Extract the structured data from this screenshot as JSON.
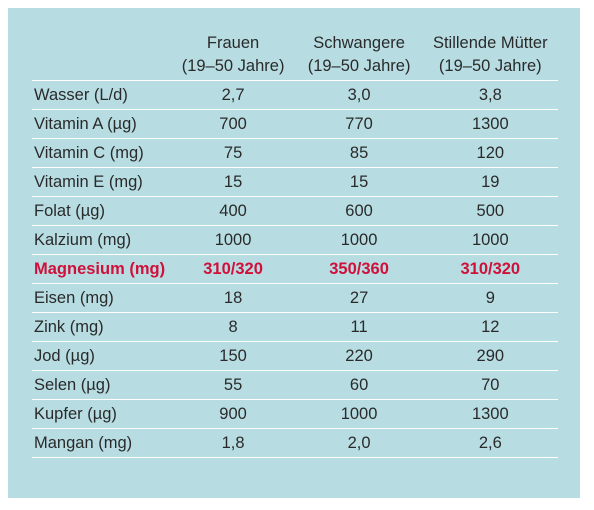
{
  "header": {
    "columns": [
      {
        "line1": "Frauen",
        "line2": "(19–50 Jahre)"
      },
      {
        "line1": "Schwangere",
        "line2": "(19–50 Jahre)"
      },
      {
        "line1": "Stillende Mütter",
        "line2": "(19–50 Jahre)"
      }
    ]
  },
  "rows": [
    {
      "label": "Wasser (L/d)",
      "values": [
        "2,7",
        "3,0",
        "3,8"
      ]
    },
    {
      "label": "Vitamin A (µg)",
      "values": [
        "700",
        "770",
        "1300"
      ]
    },
    {
      "label": "Vitamin C (mg)",
      "values": [
        "75",
        "85",
        "120"
      ]
    },
    {
      "label": "Vitamin E (mg)",
      "values": [
        "15",
        "15",
        "19"
      ]
    },
    {
      "label": "Folat (µg)",
      "values": [
        "400",
        "600",
        "500"
      ]
    },
    {
      "label": "Kalzium (mg)",
      "values": [
        "1000",
        "1000",
        "1000"
      ]
    },
    {
      "label": "Magnesium (mg)",
      "values": [
        "310/320",
        "350/360",
        "310/320"
      ]
    },
    {
      "label": "Eisen (mg)",
      "values": [
        "18",
        "27",
        "9"
      ]
    },
    {
      "label": "Zink (mg)",
      "values": [
        "8",
        "11",
        "12"
      ]
    },
    {
      "label": "Jod (µg)",
      "values": [
        "150",
        "220",
        "290"
      ]
    },
    {
      "label": "Selen (µg)",
      "values": [
        "55",
        "60",
        "70"
      ]
    },
    {
      "label": "Kupfer (µg)",
      "values": [
        "900",
        "1000",
        "1300"
      ]
    },
    {
      "label": "Mangan (mg)",
      "values": [
        "1,8",
        "2,0",
        "2,6"
      ]
    }
  ],
  "colors": {
    "panel_background": "#b7dde3",
    "highlight_text": "#d0103a",
    "rule": "#ffffff"
  }
}
